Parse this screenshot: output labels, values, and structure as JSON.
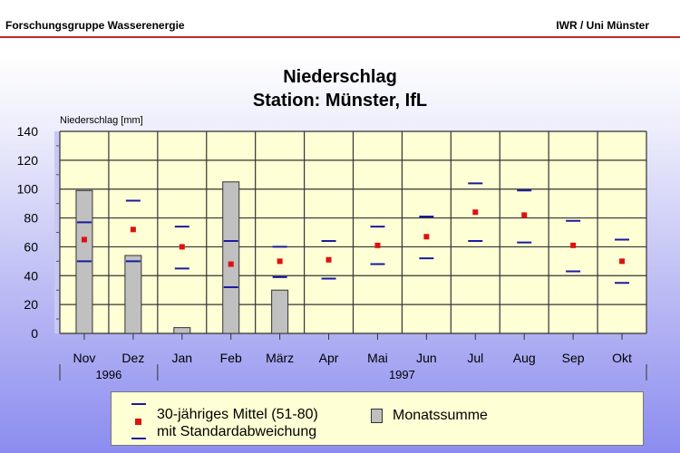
{
  "header": {
    "left": "Forschungsgruppe Wasserenergie",
    "right": "IWR / Uni Münster"
  },
  "chart_data": {
    "type": "bar",
    "title": "Niederschlag",
    "subtitle": "Station: Münster, IfL",
    "ylabel": "Niederschlag [mm]",
    "ylim": [
      0,
      140
    ],
    "yticks": [
      0,
      20,
      40,
      60,
      80,
      100,
      120,
      140
    ],
    "grid": true,
    "categories": [
      "Nov",
      "Dez",
      "Jan",
      "Feb",
      "März",
      "Apr",
      "Mai",
      "Jun",
      "Jul",
      "Aug",
      "Sep",
      "Okt"
    ],
    "years": [
      {
        "label": "1996",
        "span": 2
      },
      {
        "label": "1997",
        "span": 10
      }
    ],
    "series": [
      {
        "name": "Monatssumme",
        "type": "bar",
        "color": "#c0c0c0",
        "values": [
          99,
          54,
          4,
          105,
          30,
          null,
          null,
          null,
          null,
          null,
          null,
          null
        ]
      },
      {
        "name": "30-jähriges Mittel (51-80)",
        "type": "marker",
        "color": "#e01010",
        "values": [
          65,
          72,
          60,
          48,
          50,
          51,
          61,
          67,
          84,
          82,
          61,
          50
        ]
      },
      {
        "name": "Mittel + Standardabweichung",
        "type": "dash",
        "color": "#1a1aa0",
        "values": [
          77,
          92,
          74,
          64,
          60,
          64,
          74,
          81,
          104,
          99,
          78,
          65
        ]
      },
      {
        "name": "Mittel - Standardabweichung",
        "type": "dash",
        "color": "#1a1aa0",
        "values": [
          50,
          50,
          45,
          32,
          39,
          38,
          48,
          52,
          64,
          63,
          43,
          35
        ]
      }
    ],
    "legend": {
      "placement": "bottom",
      "mean_label": "30-jähriges Mittel (51-80)",
      "std_label": "mit Standardabweichung",
      "bar_label": "Monatssumme"
    }
  }
}
